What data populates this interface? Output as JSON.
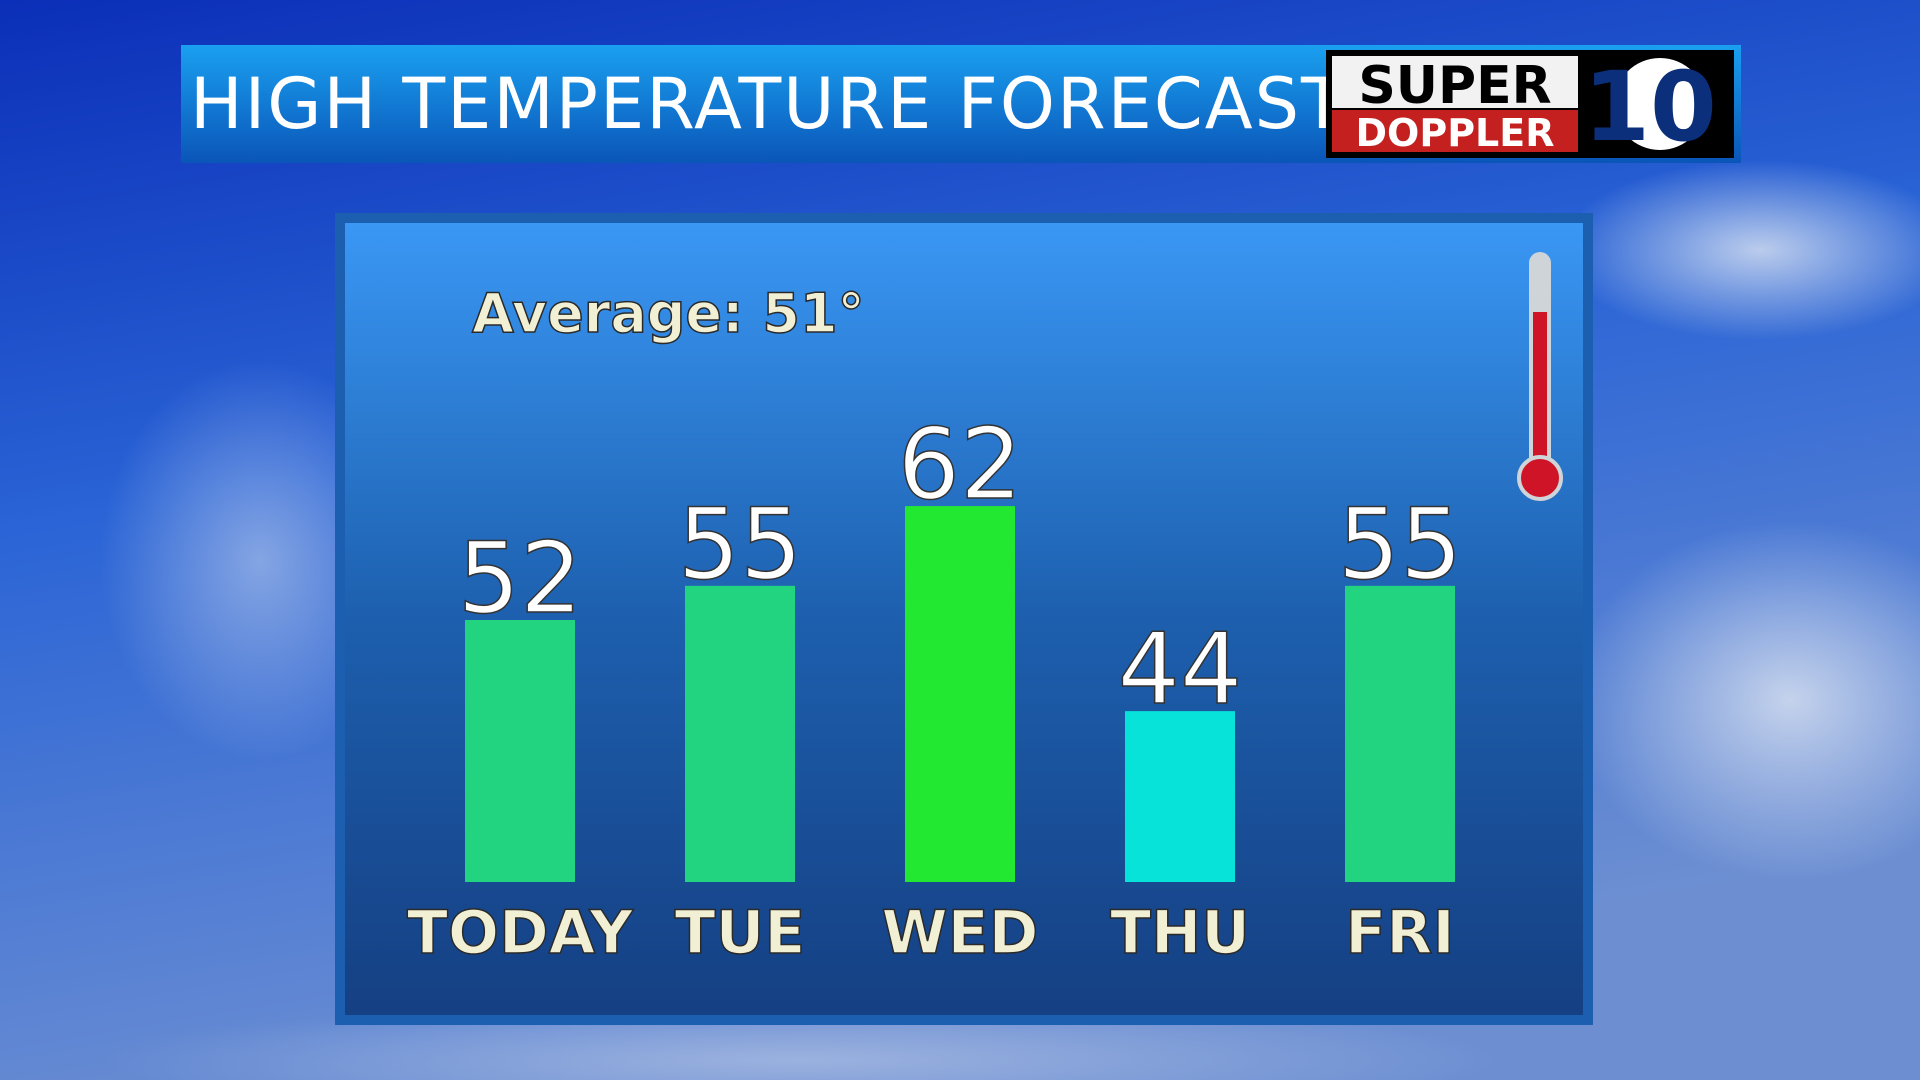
{
  "chart_data": {
    "type": "bar",
    "title": "HIGH TEMPERATURE FORECAST",
    "logo": {
      "line1": "SUPER",
      "line2": "DOPPLER",
      "number": "10"
    },
    "annotation": "Average: 51°",
    "categories": [
      "TODAY",
      "TUE",
      "WED",
      "THU",
      "FRI"
    ],
    "values": [
      52,
      55,
      62,
      44,
      55
    ],
    "colors": [
      "#22d37f",
      "#22d37f",
      "#22e832",
      "#07e3d8",
      "#22d37f"
    ],
    "ylim": [
      29,
      75
    ]
  }
}
